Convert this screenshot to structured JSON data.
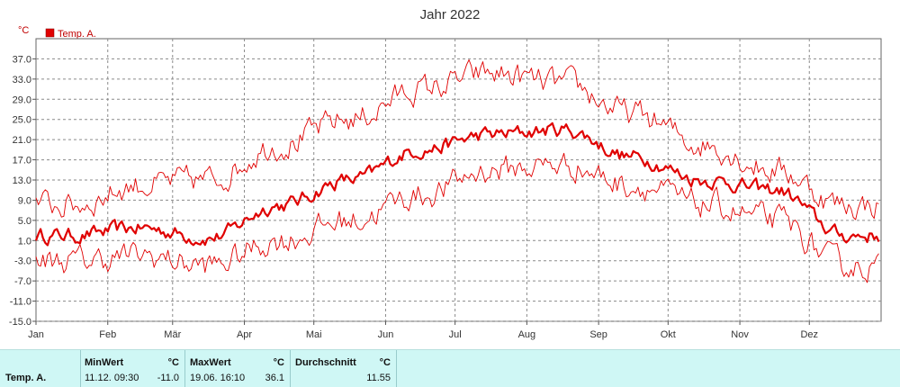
{
  "chart_data": {
    "type": "line",
    "title": "Jahr 2022",
    "unit_label": "°C",
    "ylim": [
      -15.0,
      41.0
    ],
    "yticks": [
      "-15.0",
      "-11.0",
      "-7.0",
      "-3.0",
      "1.0",
      "5.0",
      "9.0",
      "13.0",
      "17.0",
      "21.0",
      "25.0",
      "29.0",
      "33.0",
      "37.0"
    ],
    "months": [
      "Jan",
      "Feb",
      "Mär",
      "Apr",
      "Mai",
      "Jun",
      "Jul",
      "Aug",
      "Sep",
      "Okt",
      "Nov",
      "Dez"
    ],
    "grid": true,
    "legend": {
      "position": "top-left",
      "label": "Temp. A."
    },
    "series": [
      {
        "name": "Temp. A.",
        "role": "mean",
        "color": "#e00000",
        "monthly_values": [
          2.0,
          3.5,
          1.5,
          8.0,
          13.0,
          19.0,
          22.0,
          23.0,
          17.5,
          13.0,
          11.0,
          2.0
        ]
      },
      {
        "name": "Max",
        "role": "max",
        "color": "#e00000",
        "monthly_values": [
          8.0,
          12.0,
          13.0,
          20.0,
          25.0,
          31.0,
          34.0,
          32.0,
          26.0,
          20.0,
          15.0,
          8.0
        ]
      },
      {
        "name": "Min",
        "role": "min",
        "color": "#e00000",
        "monthly_values": [
          -3.0,
          -2.0,
          -4.0,
          1.0,
          5.0,
          10.0,
          15.0,
          16.0,
          12.0,
          8.0,
          5.0,
          -4.0
        ]
      }
    ]
  },
  "stats": {
    "row_label": "Temp. A.",
    "min_header": "MinWert",
    "min_unit": "°C",
    "min_date": "11.12.  09:30",
    "min_value": "-11.0",
    "max_header": "MaxWert",
    "max_unit": "°C",
    "max_date": "19.06.  16:10",
    "max_value": "36.1",
    "avg_header": "Durchschnitt",
    "avg_unit": "°C",
    "avg_value": "11.55"
  },
  "colors": {
    "series": "#e00000",
    "grid": "#8a8a8a",
    "stats_bg": "#cff7f5"
  }
}
